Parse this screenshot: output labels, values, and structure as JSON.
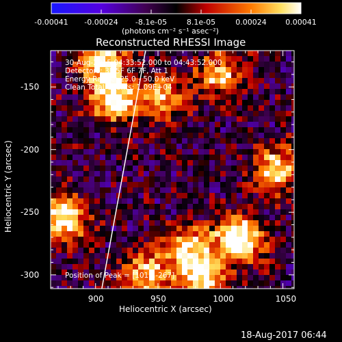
{
  "colorbar": {
    "tick_labels": [
      "-0.00041",
      "-0.00024",
      "-8.1e-05",
      "8.1e-05",
      "0.00024",
      "0.00041"
    ],
    "unit_label": "(photons cm⁻² s⁻¹ asec⁻²)",
    "range": [
      -0.00041,
      0.00041
    ],
    "colors": [
      "#1010ff",
      "#6a00d8",
      "#000000",
      "#b00000",
      "#ff8000",
      "#ffffff"
    ]
  },
  "chart_data": {
    "type": "heatmap",
    "title": "Reconstructed RHESSI Image",
    "xlabel": "Heliocentric X (arcsec)",
    "ylabel": "Heliocentric Y (arcsec)",
    "xlim": [
      864,
      1059
    ],
    "ylim": [
      -311,
      -121
    ],
    "xticks": [
      900,
      950,
      1000,
      1050
    ],
    "yticks": [
      -150,
      -200,
      -250,
      -300
    ],
    "grid": false,
    "limb_line": [
      [
        905,
        -311
      ],
      [
        940,
        -121
      ]
    ],
    "peak": [
      1015,
      -267
    ],
    "info_lines": [
      "30-Aug-2015 04:33:52.000 to 04:43:52.000",
      "Detectors: 3F 5F 6F 7F, Att 1",
      "Energy Range: 25.0 - 50.0 keV",
      "Clean    Total Counts: 1.09E+04"
    ],
    "peak_label": "Position of Peak = [1015,-267]",
    "hot_spots": [
      {
        "x": 1015,
        "y": -272,
        "value": 0.00041
      },
      {
        "x": 915,
        "y": -160,
        "value": 0.0003
      },
      {
        "x": 905,
        "y": -130,
        "value": 0.00026
      },
      {
        "x": 875,
        "y": -255,
        "value": 0.00028
      },
      {
        "x": 975,
        "y": -280,
        "value": 0.00022
      },
      {
        "x": 985,
        "y": -305,
        "value": 0.00022
      },
      {
        "x": 940,
        "y": -300,
        "value": 0.0002
      },
      {
        "x": 1045,
        "y": -215,
        "value": 0.00022
      },
      {
        "x": 955,
        "y": -160,
        "value": 0.00014
      },
      {
        "x": 1000,
        "y": -140,
        "value": 0.00016
      }
    ]
  },
  "footer": {
    "date": "18-Aug-2017 06:44"
  }
}
